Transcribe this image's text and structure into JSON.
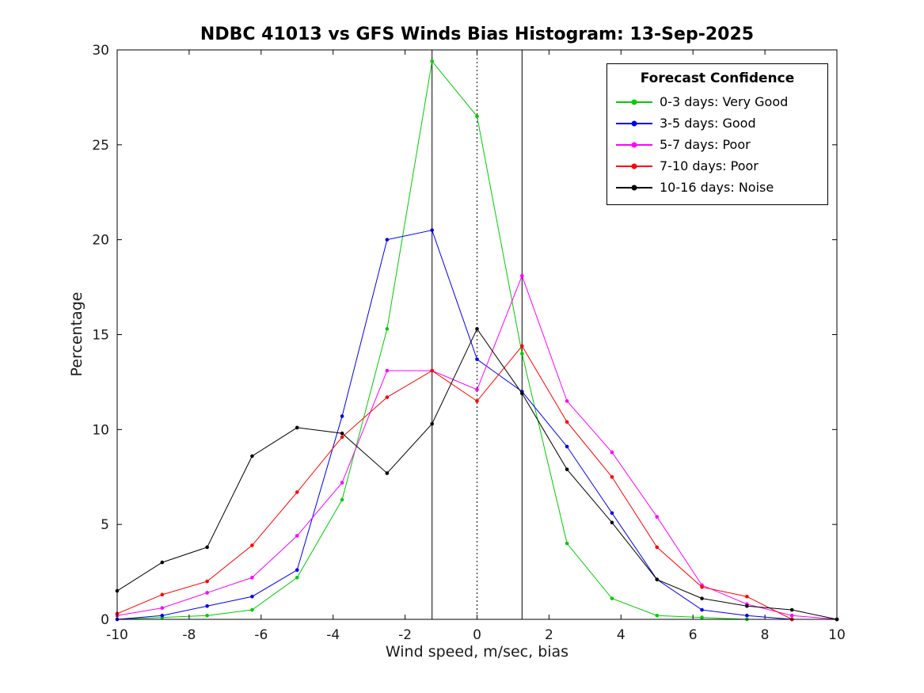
{
  "chart_data": {
    "type": "line",
    "title": "NDBC 41013 vs GFS Winds Bias Histogram: 13-Sep-2025",
    "xlabel": "Wind speed, m/sec, bias",
    "ylabel": "Percentage",
    "xlim": [
      -10,
      10
    ],
    "ylim": [
      0,
      30
    ],
    "xticks": [
      -10,
      -8,
      -6,
      -4,
      -2,
      0,
      2,
      4,
      6,
      8,
      10
    ],
    "yticks": [
      0,
      5,
      10,
      15,
      20,
      25,
      30
    ],
    "grid": false,
    "x": [
      -10,
      -8.75,
      -7.5,
      -6.25,
      -5,
      -3.75,
      -2.5,
      -1.25,
      0,
      1.25,
      2.5,
      3.75,
      5,
      6.25,
      7.5,
      8.75,
      10
    ],
    "series": [
      {
        "id": "0-3-days",
        "name": "0-3 days: Very Good",
        "color": "#00cc00",
        "values": [
          0,
          0.1,
          0.2,
          0.5,
          2.2,
          6.3,
          15.3,
          29.4,
          26.5,
          14.0,
          4.0,
          1.1,
          0.2,
          0.1,
          0,
          0,
          0
        ]
      },
      {
        "id": "3-5-days",
        "name": "3-5 days: Good",
        "color": "#0000ee",
        "values": [
          0,
          0.2,
          0.7,
          1.2,
          2.6,
          10.7,
          20.0,
          20.5,
          13.7,
          12.0,
          9.1,
          5.6,
          2.1,
          0.5,
          0.2,
          0,
          0
        ]
      },
      {
        "id": "5-7-days",
        "name": "5-7 days: Poor",
        "color": "#ff00ff",
        "values": [
          0.2,
          0.6,
          1.4,
          2.2,
          4.4,
          7.2,
          13.1,
          13.1,
          12.1,
          18.1,
          11.5,
          8.8,
          5.4,
          1.8,
          0.8,
          0.2,
          0
        ]
      },
      {
        "id": "7-10-days",
        "name": "7-10 days: Poor",
        "color": "#ff0000",
        "values": [
          0.3,
          1.3,
          2.0,
          3.9,
          6.7,
          9.6,
          11.7,
          13.1,
          11.5,
          14.4,
          10.4,
          7.5,
          3.8,
          1.7,
          1.2,
          0,
          0
        ]
      },
      {
        "id": "10-16-days",
        "name": "10-16 days: Noise",
        "color": "#000000",
        "values": [
          1.5,
          3.0,
          3.8,
          8.6,
          10.1,
          9.8,
          7.7,
          10.3,
          15.3,
          11.9,
          7.9,
          5.1,
          2.1,
          1.1,
          0.7,
          0.5,
          0
        ]
      }
    ],
    "reference_lines": [
      {
        "x": -1.25,
        "style": "solid",
        "color": "#000000"
      },
      {
        "x": 0,
        "style": "dotted",
        "color": "#000000"
      },
      {
        "x": 1.25,
        "style": "solid",
        "color": "#000000"
      }
    ],
    "legend": {
      "title": "Forecast Confidence",
      "position": "top-right"
    }
  }
}
